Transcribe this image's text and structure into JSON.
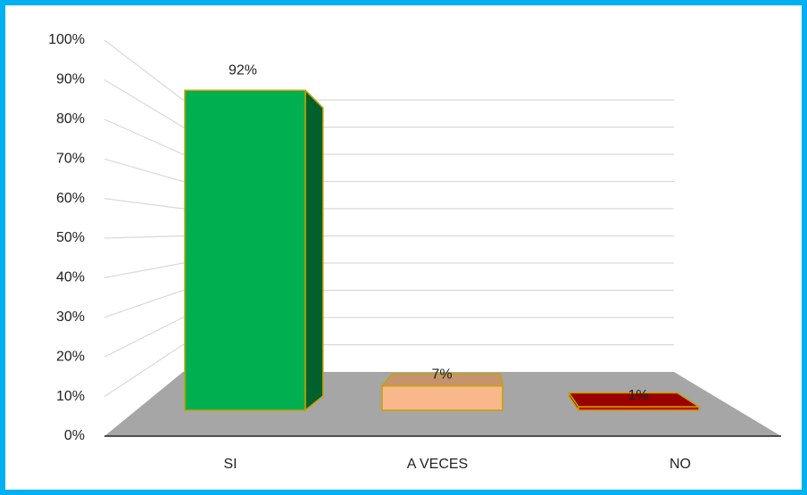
{
  "chart_data": {
    "type": "bar3d",
    "categories": [
      "SI",
      "A VECES",
      "NO"
    ],
    "values": [
      92,
      7,
      1
    ],
    "value_labels": [
      "92%",
      "7%",
      "1%"
    ],
    "colors": [
      "#00b050",
      "#f8b88b",
      "#c00000"
    ],
    "ylim": [
      0,
      100
    ],
    "yticks": [
      {
        "value": 0,
        "label": "0%"
      },
      {
        "value": 10,
        "label": "10%"
      },
      {
        "value": 20,
        "label": "20%"
      },
      {
        "value": 30,
        "label": "30%"
      },
      {
        "value": 40,
        "label": "40%"
      },
      {
        "value": 50,
        "label": "50%"
      },
      {
        "value": 60,
        "label": "60%"
      },
      {
        "value": 70,
        "label": "70%"
      },
      {
        "value": 80,
        "label": "80%"
      },
      {
        "value": 90,
        "label": "90%"
      },
      {
        "value": 100,
        "label": "100%"
      }
    ],
    "grid": true
  }
}
